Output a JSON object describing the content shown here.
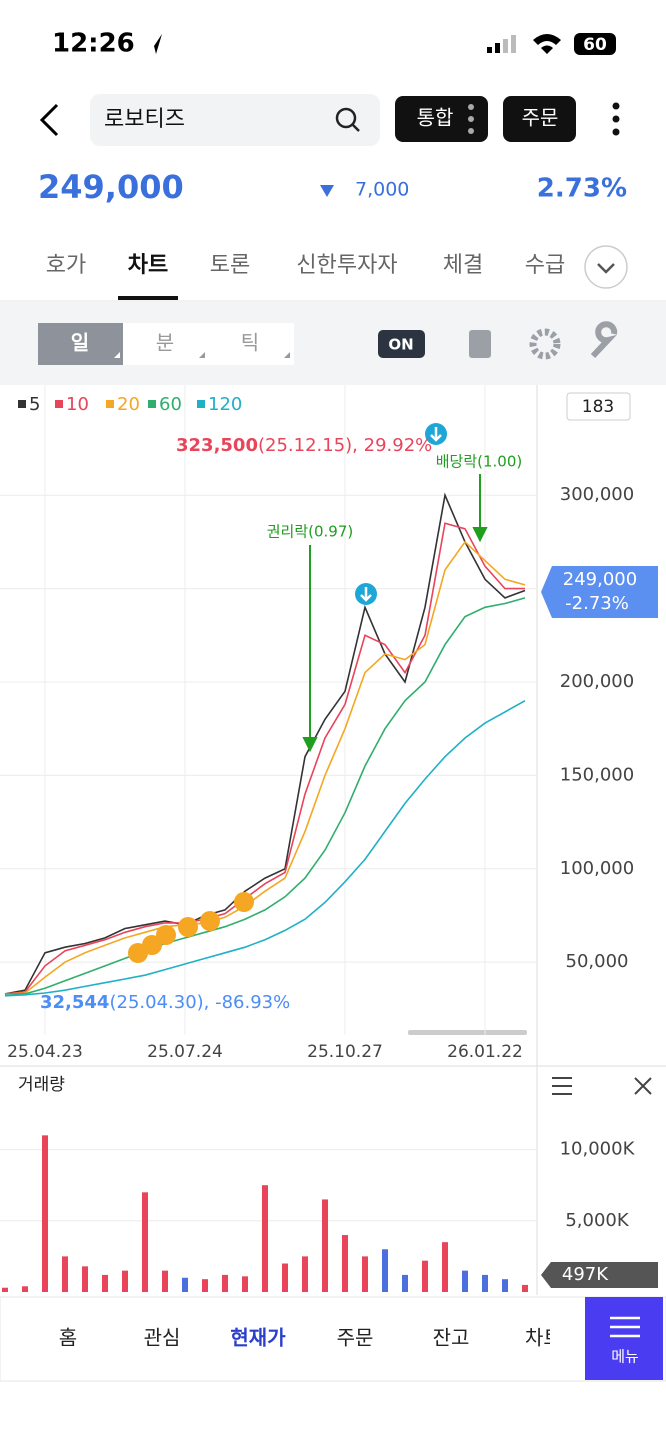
{
  "status": {
    "time": "12:26",
    "battery": "60"
  },
  "header": {
    "search": "로보티즈",
    "buttons": [
      "통합",
      "주문"
    ]
  },
  "quote": {
    "price": "249,000",
    "change": "7,000",
    "rate": "2.73%"
  },
  "tabs": [
    "호가",
    "차트",
    "토론",
    "신한투자자",
    "체결",
    "수급"
  ],
  "selected_tab": 1,
  "toolbar": {
    "periods": [
      "일",
      "분",
      "틱"
    ],
    "toggle": "ON"
  },
  "chart_data": [
    {
      "type": "line",
      "count": "183",
      "categories": [
        null,
        null,
        "25.04.23",
        null,
        null,
        null,
        null,
        null,
        null,
        "25.07.24",
        null,
        null,
        null,
        null,
        null,
        null,
        null,
        "25.10.27",
        null,
        null,
        null,
        null,
        null,
        null,
        "26.01.22",
        null,
        null
      ],
      "series": [
        {
          "name": "5",
          "color": "#333333",
          "values": [
            33000,
            35000,
            55000,
            58000,
            60000,
            63000,
            68000,
            70000,
            72000,
            70000,
            75000,
            78000,
            88000,
            95000,
            100000,
            160000,
            180000,
            195000,
            240000,
            215000,
            200000,
            240000,
            300000,
            275000,
            255000,
            245000,
            249000
          ]
        },
        {
          "name": "10",
          "color": "#e8445a",
          "values": [
            33000,
            34000,
            48000,
            56000,
            59000,
            62000,
            66000,
            69000,
            71000,
            71000,
            73000,
            76000,
            84000,
            92000,
            98000,
            140000,
            170000,
            188000,
            225000,
            220000,
            205000,
            225000,
            285000,
            282000,
            262000,
            250000,
            250000
          ]
        },
        {
          "name": "20",
          "color": "#f5a623",
          "values": [
            33000,
            33500,
            42000,
            50000,
            55000,
            59000,
            63000,
            66000,
            69000,
            70000,
            71000,
            74000,
            80000,
            88000,
            95000,
            120000,
            150000,
            175000,
            205000,
            215000,
            212000,
            220000,
            260000,
            275000,
            265000,
            255000,
            252000
          ]
        },
        {
          "name": "60",
          "color": "#2fae6e",
          "values": [
            33000,
            33000,
            36000,
            40000,
            44000,
            48000,
            52000,
            56000,
            60000,
            63000,
            66000,
            69000,
            73000,
            78000,
            85000,
            95000,
            110000,
            130000,
            155000,
            175000,
            190000,
            200000,
            220000,
            235000,
            240000,
            242000,
            245000
          ]
        },
        {
          "name": "120",
          "color": "#1fb0c8",
          "values": [
            32000,
            32500,
            33500,
            35000,
            37000,
            39000,
            41000,
            43000,
            46000,
            49000,
            52000,
            55000,
            58000,
            62000,
            67000,
            73000,
            82000,
            93000,
            105000,
            120000,
            135000,
            148000,
            160000,
            170000,
            178000,
            184000,
            190000
          ]
        }
      ],
      "ylim": [
        11000,
        359000
      ],
      "yticks": [
        {
          "value": 50000,
          "label": "50,000"
        },
        {
          "value": 100000,
          "label": "100,000"
        },
        {
          "value": 150000,
          "label": "150,000"
        },
        {
          "value": 200000,
          "label": "200,000"
        },
        {
          "value": 250000,
          "label": "250,000"
        },
        {
          "value": 300000,
          "label": "300,000"
        }
      ],
      "grid": true,
      "high": {
        "price": "323,500",
        "detail": "(25.12.15), 29.92%"
      },
      "low": {
        "price": "32,544",
        "detail": "(25.04.30), -86.93%"
      },
      "events": [
        "권리락(0.97)",
        "배당락(1.00)"
      ],
      "price_tag": {
        "price": "249,000",
        "change": "-2.73%"
      }
    },
    {
      "type": "bar",
      "title": "거래량",
      "values": [
        300,
        400,
        11000,
        2500,
        1800,
        1200,
        1500,
        7000,
        1500,
        1000,
        900,
        1200,
        1100,
        7500,
        2000,
        2500,
        6500,
        4000,
        2500,
        3000,
        1200,
        2200,
        3500,
        1500,
        1200,
        900,
        497
      ],
      "value_labels": [
        null,
        null,
        null,
        null,
        null,
        null,
        null,
        null,
        null,
        null,
        null,
        null,
        null,
        null,
        null,
        null,
        null,
        null,
        null,
        null,
        null,
        null,
        null,
        null,
        null,
        null,
        "497K"
      ],
      "ylim": [
        0,
        15800
      ],
      "yticks": [
        {
          "value": 5000,
          "label": "5,000K"
        },
        {
          "value": 10000,
          "label": "10,000K"
        }
      ]
    }
  ],
  "nav": {
    "items": [
      "홈",
      "관심",
      "현재가",
      "주문",
      "잔고",
      "차트"
    ],
    "selected": 2,
    "menu": "메뉴"
  }
}
